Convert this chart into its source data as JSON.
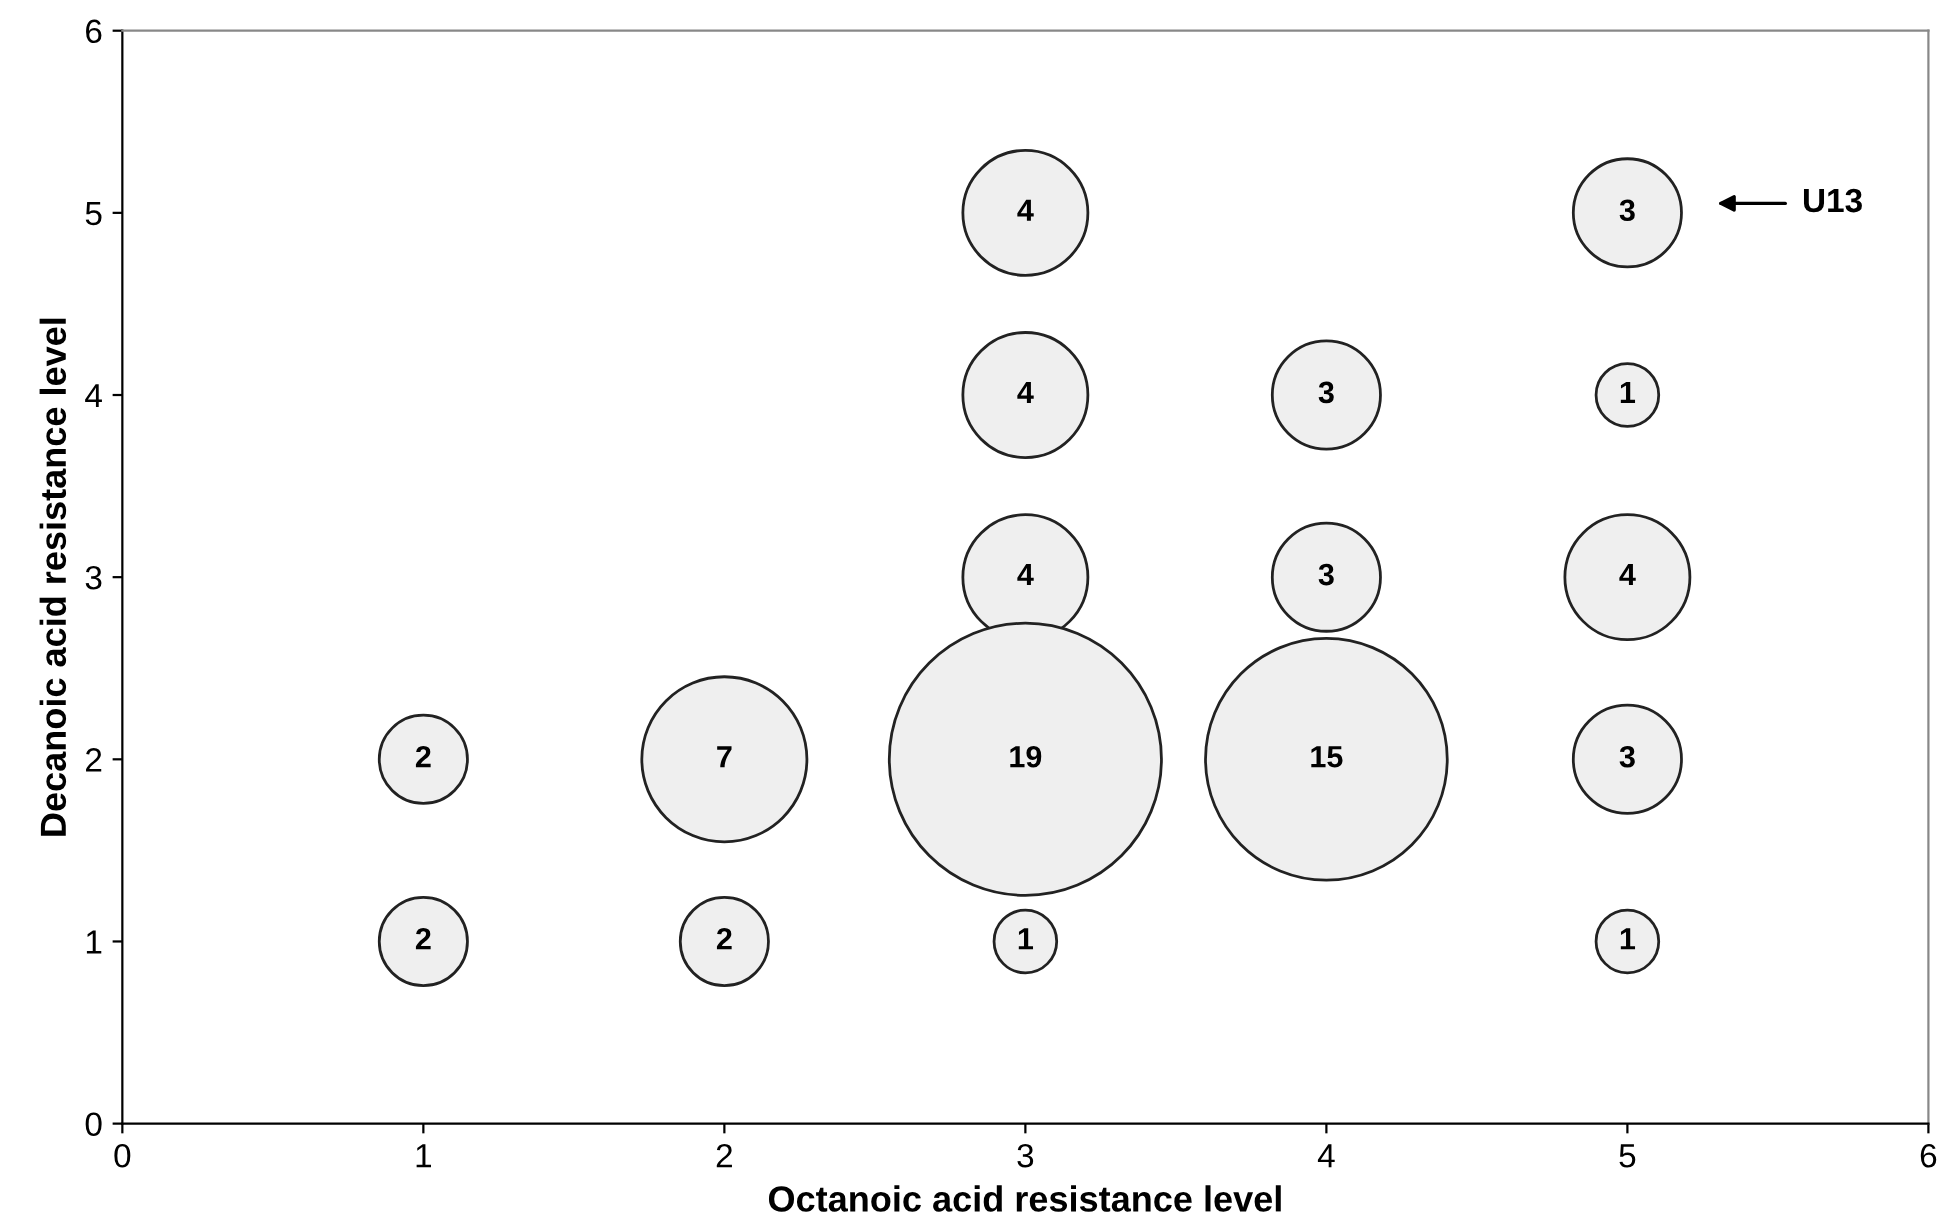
{
  "chart_data": {
    "type": "bubble",
    "xlabel": "Octanoic acid resistance level",
    "ylabel": "Decanoic acid resistance level",
    "series": [
      {
        "color": "#efefef",
        "x": [
          1,
          1,
          2,
          2,
          3,
          3,
          3,
          3,
          3,
          4,
          4,
          4,
          5,
          5,
          5,
          5,
          5
        ],
        "values": [
          2,
          1,
          2,
          1,
          5,
          4,
          3,
          2,
          1,
          4,
          3,
          2,
          5,
          4,
          3,
          2,
          1
        ],
        "sizes": [
          0.105,
          0.105,
          0.368,
          0.105,
          0.211,
          0.211,
          0.211,
          1,
          0.053,
          0.158,
          0.158,
          0.789,
          0.158,
          0.053,
          0.211,
          0.158,
          0.053
        ]
      }
    ],
    "xlim": [
      0,
      6
    ],
    "xticks": [
      0,
      1,
      2,
      3,
      4,
      5,
      6
    ],
    "ylim": [
      0,
      6
    ],
    "yticks": [
      0,
      1,
      2,
      3,
      4,
      5,
      6
    ],
    "grid": false,
    "legend": false,
    "annotations": [
      "U13",
      {
        "text": "2",
        "x": 1,
        "y": 2
      },
      {
        "text": "2",
        "x": 1,
        "y": 1
      },
      {
        "text": "7",
        "x": 2,
        "y": 2
      },
      {
        "text": "2",
        "x": 2,
        "y": 1
      },
      {
        "text": "4",
        "x": 3,
        "y": 5
      },
      {
        "text": "4",
        "x": 3,
        "y": 4
      },
      {
        "text": "4",
        "x": 3,
        "y": 3
      },
      {
        "text": "19",
        "x": 3,
        "y": 2
      },
      {
        "text": "1",
        "x": 3,
        "y": 1
      },
      {
        "text": "3",
        "x": 4,
        "y": 4
      },
      {
        "text": "3",
        "x": 4,
        "y": 3
      },
      {
        "text": "15",
        "x": 4,
        "y": 2
      },
      {
        "text": "3",
        "x": 5,
        "y": 5
      },
      {
        "text": "1",
        "x": 5,
        "y": 4
      },
      {
        "text": "4",
        "x": 5,
        "y": 3
      },
      {
        "text": "3",
        "x": 5,
        "y": 2
      },
      {
        "text": "1",
        "x": 5,
        "y": 1
      }
    ]
  }
}
